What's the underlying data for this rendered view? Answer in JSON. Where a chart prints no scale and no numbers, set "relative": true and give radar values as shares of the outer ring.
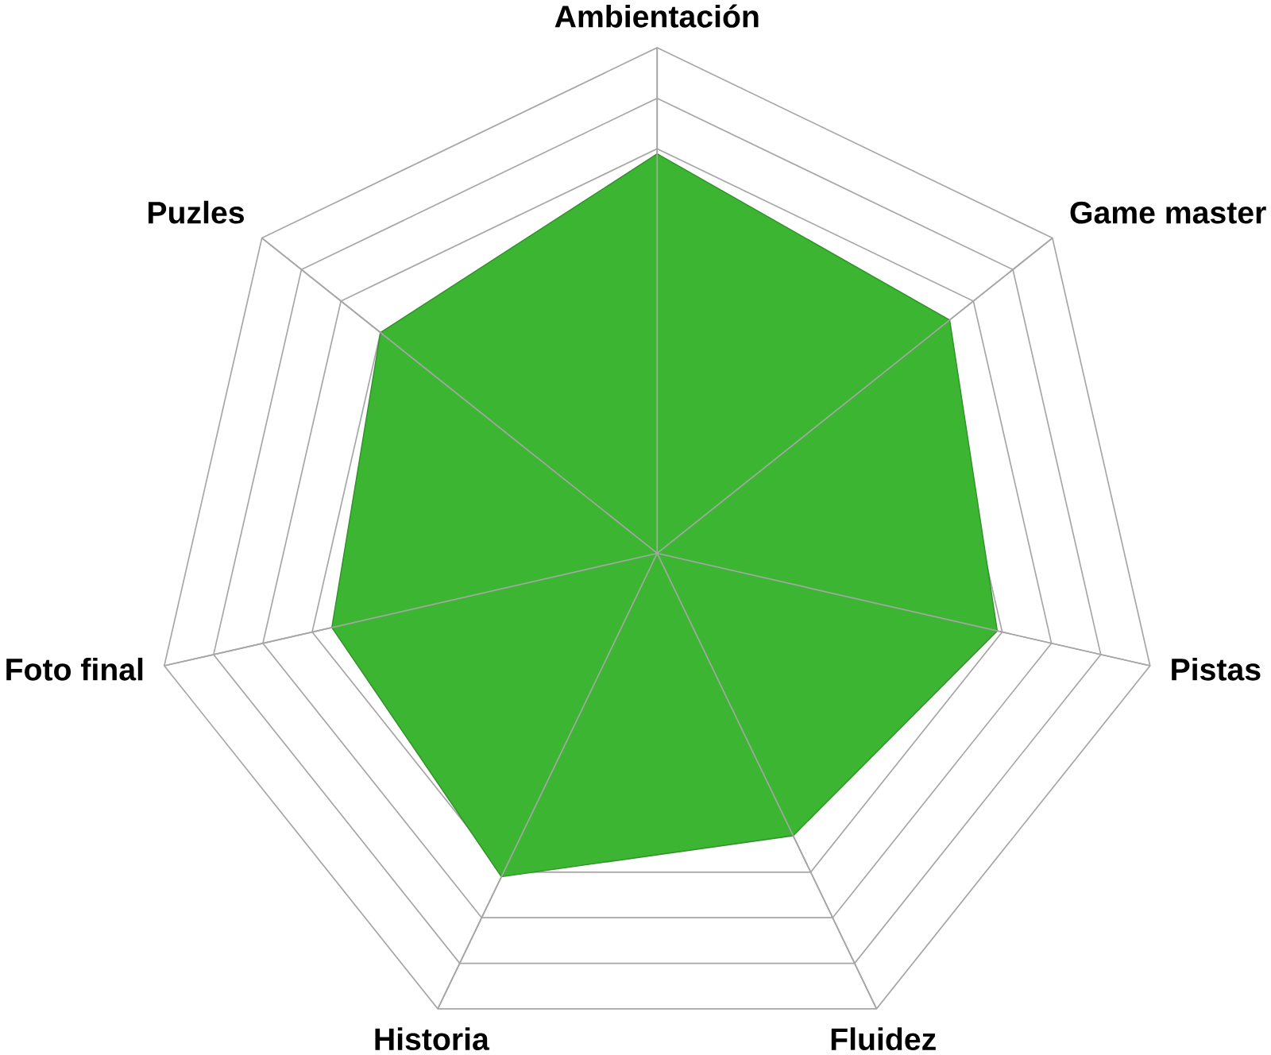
{
  "chart_data": {
    "type": "radar",
    "relative": true,
    "grid": true,
    "categories": [
      "Ambientación",
      "Game master",
      "Pistas",
      "Fluidez",
      "Historia",
      "Foto final",
      "Puzles"
    ],
    "series": [
      {
        "color": "#3cb533",
        "values": [
          0.79,
          0.74,
          0.69,
          0.62,
          0.71,
          0.66,
          0.7
        ]
      }
    ]
  }
}
